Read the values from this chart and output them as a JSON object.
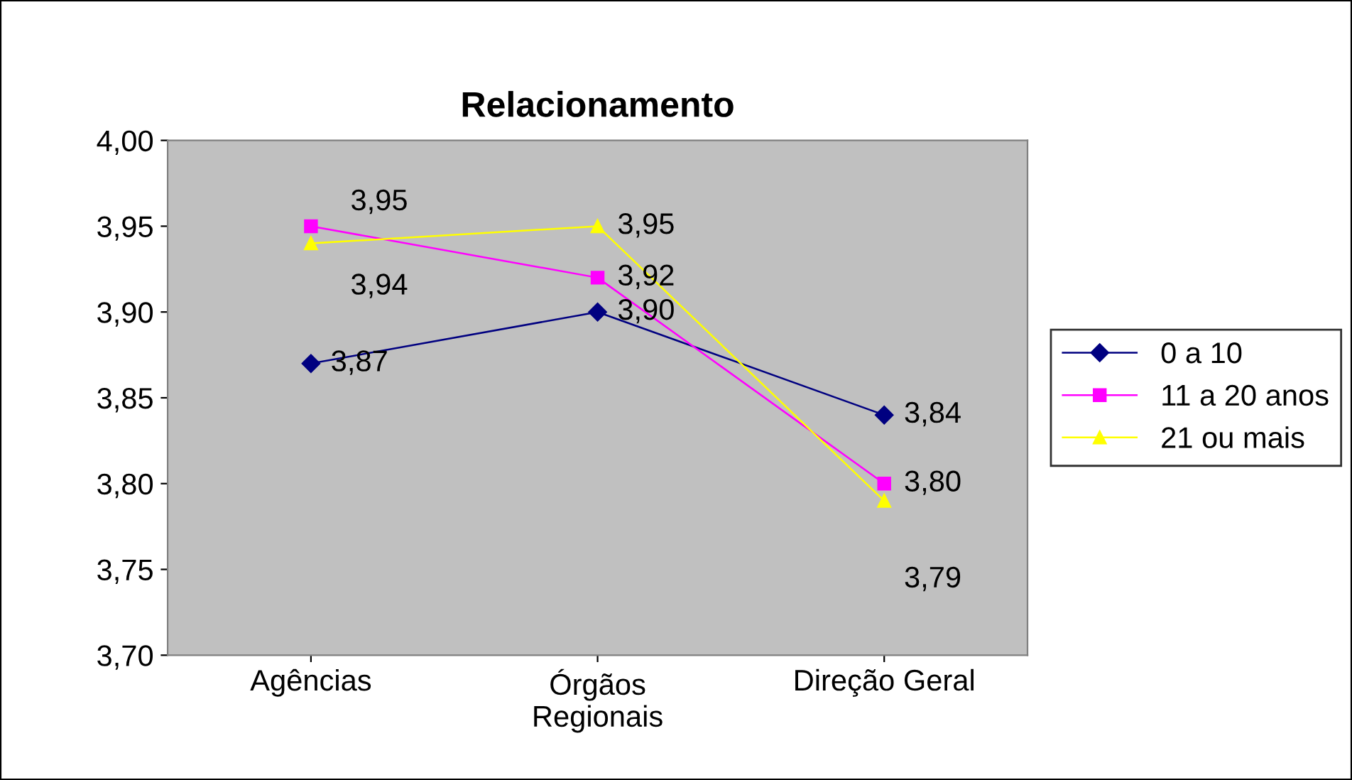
{
  "chart_data": {
    "type": "line",
    "title": "Relacionamento",
    "categories": [
      "Agências",
      "Órgãos\nRegionais",
      "Direção Geral"
    ],
    "series": [
      {
        "name": "0 a 10",
        "color": "#000080",
        "marker": "diamond",
        "values": [
          3.87,
          3.9,
          3.84
        ],
        "value_labels": [
          "3,87",
          "3,90",
          "3,84"
        ]
      },
      {
        "name": "11 a 20 anos",
        "color": "#ff00ff",
        "marker": "square",
        "values": [
          3.95,
          3.92,
          3.8
        ],
        "value_labels": [
          "3,95",
          "3,92",
          "3,80"
        ]
      },
      {
        "name": "21 ou mais",
        "color": "#ffff00",
        "marker": "triangle",
        "values": [
          3.94,
          3.95,
          3.79
        ],
        "value_labels": [
          "3,94",
          "3,95",
          "3,79"
        ]
      }
    ],
    "ylim": [
      3.7,
      4.0
    ],
    "yticks": [
      {
        "value": 3.7,
        "label": "3,70"
      },
      {
        "value": 3.75,
        "label": "3,75"
      },
      {
        "value": 3.8,
        "label": "3,80"
      },
      {
        "value": 3.85,
        "label": "3,85"
      },
      {
        "value": 3.9,
        "label": "3,90"
      },
      {
        "value": 3.95,
        "label": "3,95"
      },
      {
        "value": 4.0,
        "label": "4,00"
      }
    ],
    "grid": false,
    "legend": "right"
  }
}
